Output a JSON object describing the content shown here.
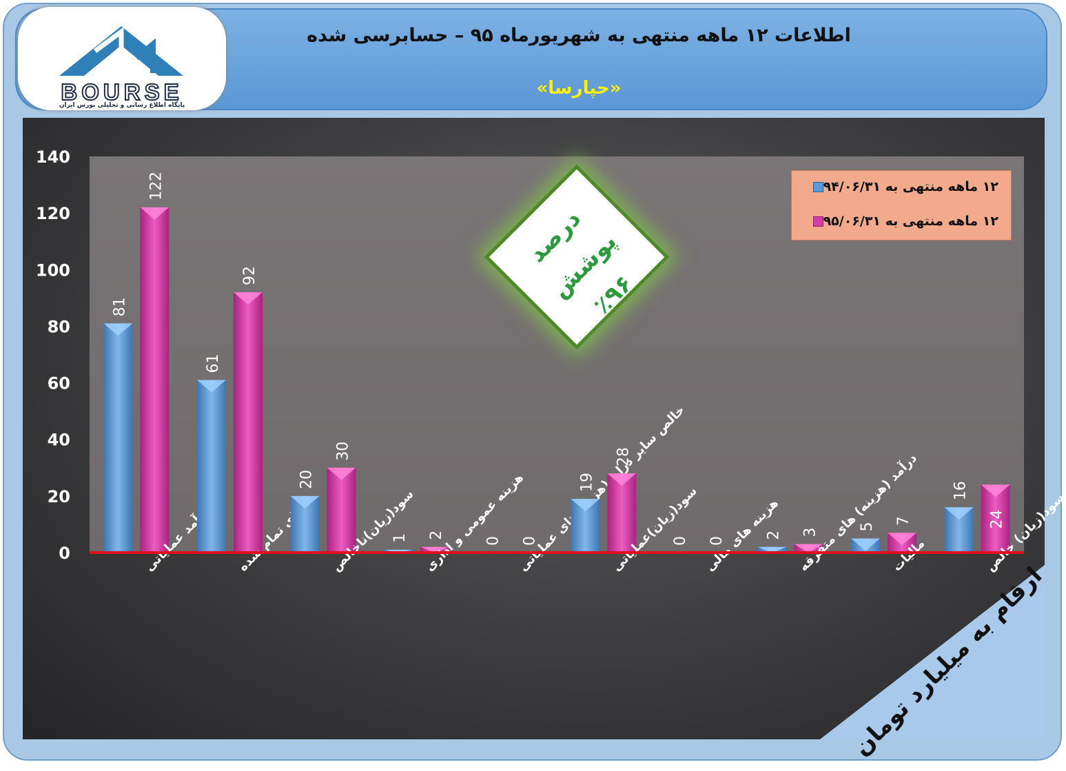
{
  "header": {
    "title": "اطلاعات ۱۲ ماهه منتهی به شهریورماه ۹۵ – حسابرسی شده",
    "subtitle": "«حپارسا»"
  },
  "logo": {
    "word": "BOURSE",
    "caption": "پایگاه اطلاع رسانی و تحلیلی بورس ایران",
    "mark_color": "#2f7fb9"
  },
  "coverage": {
    "label": "درصد پوشش",
    "value": "٪۹۶"
  },
  "units_note": "ارقام به میلیارد تومان",
  "colors": {
    "series_1": "#5b9bd5",
    "series_2": "#d43fa6",
    "baseline": "#e0111b",
    "axis_text": "#ffffff"
  },
  "chart_data": {
    "type": "bar",
    "categories": [
      "درآمد عملیاتی",
      "بهای تمام شده",
      "سود(زیان)ناخالص",
      "هزینه عمومی و اداری",
      "خالص سایر درامد(هزینه)های عملیاتی",
      "سود(زیان)عملیاتی",
      "هزینه های مالی",
      "درآمد (هزینه) های متفرقه",
      "مالیات",
      "سود(زیان) خالص"
    ],
    "series": [
      {
        "name": "۱۲ ماهه منتهی به ۹۴/۰۶/۳۱",
        "values": [
          81,
          61,
          20,
          1,
          0,
          19,
          0,
          2,
          5,
          16
        ]
      },
      {
        "name": "۱۲ ماهه منتهی به ۹۵/۰۶/۳۱",
        "values": [
          122,
          92,
          30,
          2,
          0,
          28,
          0,
          3,
          7,
          24
        ]
      }
    ],
    "ylim": [
      0,
      140
    ],
    "yticks": [
      0,
      20,
      40,
      60,
      80,
      100,
      120,
      140
    ],
    "grid": false,
    "legend_position": "top-right"
  }
}
